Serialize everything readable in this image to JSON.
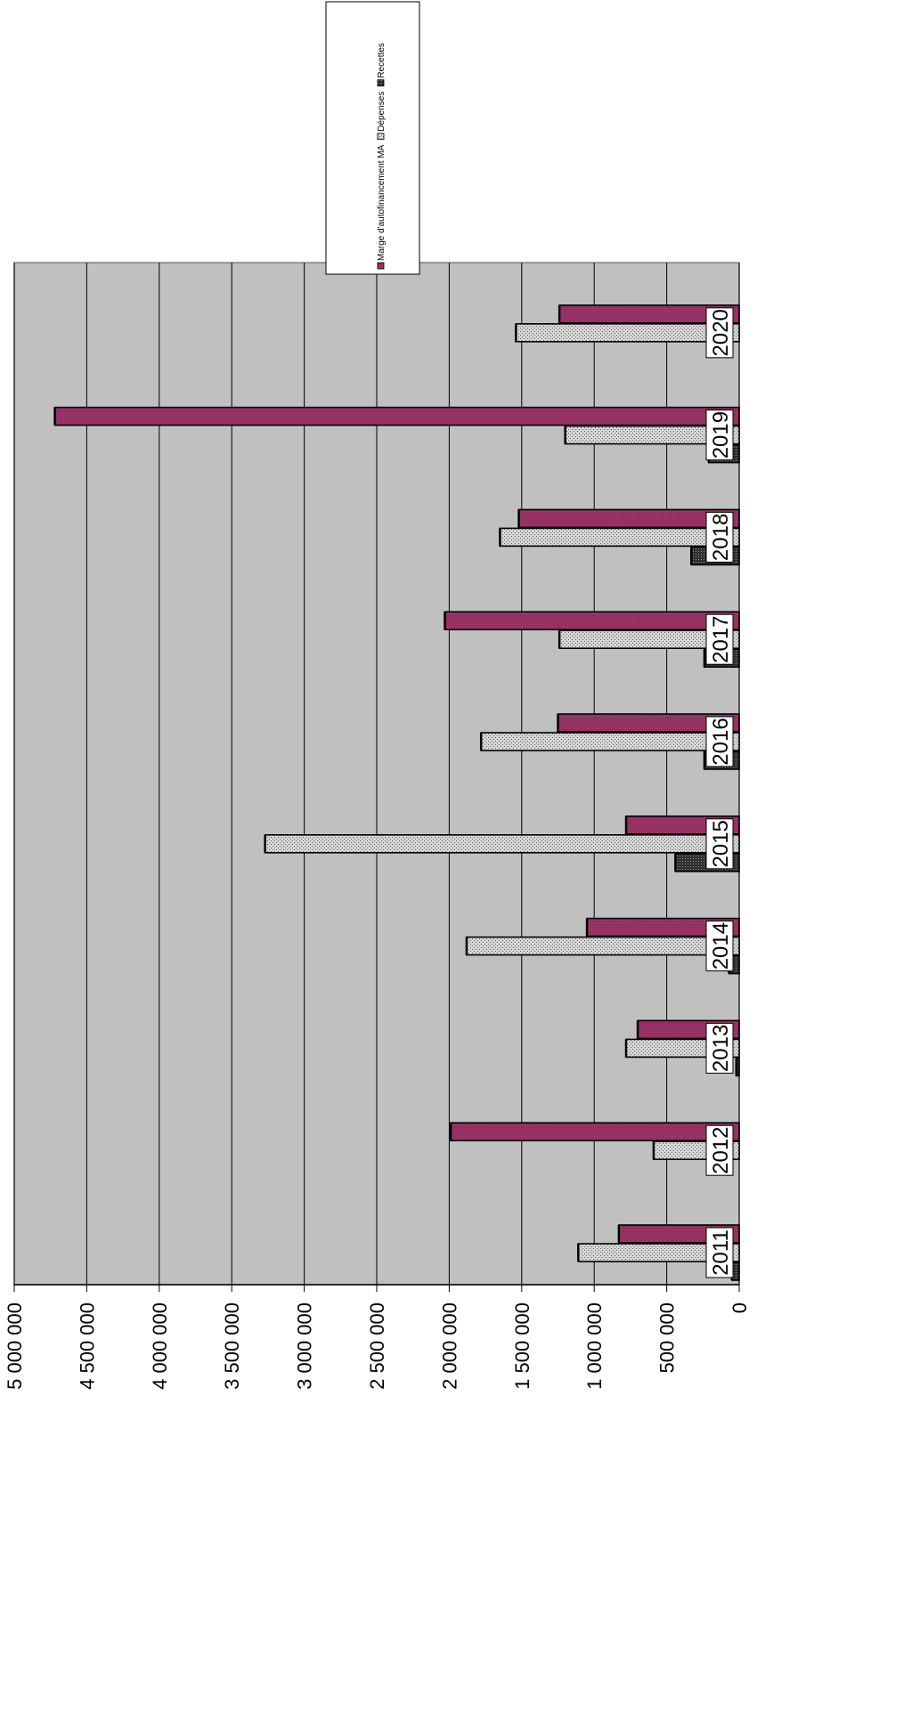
{
  "chart_data": {
    "type": "bar",
    "orientation": "rotated-90",
    "categories": [
      "2011",
      "2012",
      "2013",
      "2014",
      "2015",
      "2016",
      "2017",
      "2018",
      "2019",
      "2020"
    ],
    "series": [
      {
        "name": "Marge d'autofinancement MA",
        "color": "#993366",
        "values": [
          830000,
          1990000,
          700000,
          1050000,
          780000,
          1250000,
          2030000,
          1520000,
          4720000,
          1240000
        ]
      },
      {
        "name": "Dépenses",
        "color": "#c0c0c0",
        "values": [
          1110000,
          590000,
          780000,
          1880000,
          3270000,
          1780000,
          1240000,
          1650000,
          1200000,
          1540000
        ]
      },
      {
        "name": "Recettes",
        "color": "#404040",
        "values": [
          50000,
          0,
          20000,
          70000,
          440000,
          240000,
          240000,
          330000,
          210000,
          0
        ]
      }
    ],
    "ylim": [
      0,
      5000000
    ],
    "yticks": [
      "0",
      "500 000",
      "1 000 000",
      "1 500 000",
      "2 000 000",
      "2 500 000",
      "3 000 000",
      "3 500 000",
      "4 000 000",
      "4 500 000",
      "5 000 000"
    ],
    "grid": true,
    "legend_position": "top-right",
    "plot_background": "#c0c0c0"
  }
}
